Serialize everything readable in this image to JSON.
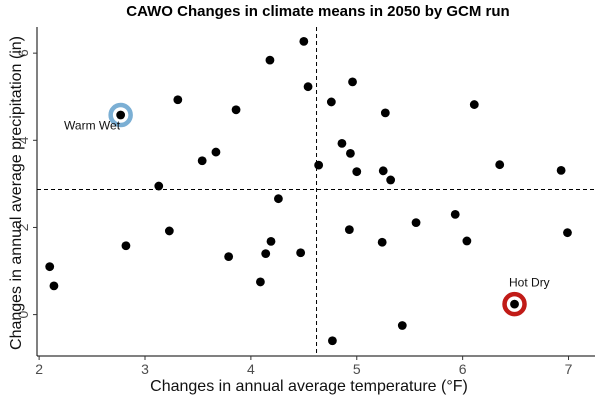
{
  "chart_data": {
    "type": "scatter",
    "title": "CAWO Changes in climate means in 2050 by GCM run",
    "xlabel": "Changes in annual average temperature (°F)",
    "ylabel": "Changes in annual average precipitation (in)",
    "xlim": [
      1.98,
      7.25
    ],
    "ylim": [
      -0.95,
      6.6
    ],
    "xticks": [
      2,
      3,
      4,
      5,
      6,
      7
    ],
    "yticks": [
      0,
      2,
      4,
      6
    ],
    "grid": false,
    "reference_lines": {
      "x": 4.62,
      "y": 2.87
    },
    "points": [
      {
        "x": 2.1,
        "y": 1.1
      },
      {
        "x": 2.14,
        "y": 0.66
      },
      {
        "x": 2.82,
        "y": 1.58
      },
      {
        "x": 3.13,
        "y": 2.95
      },
      {
        "x": 3.23,
        "y": 1.92
      },
      {
        "x": 3.31,
        "y": 4.93
      },
      {
        "x": 3.54,
        "y": 3.53
      },
      {
        "x": 3.67,
        "y": 3.73
      },
      {
        "x": 3.79,
        "y": 1.33
      },
      {
        "x": 3.86,
        "y": 4.7
      },
      {
        "x": 4.09,
        "y": 0.75
      },
      {
        "x": 4.14,
        "y": 1.4
      },
      {
        "x": 4.18,
        "y": 5.84
      },
      {
        "x": 4.19,
        "y": 1.68
      },
      {
        "x": 4.26,
        "y": 2.66
      },
      {
        "x": 4.47,
        "y": 1.42
      },
      {
        "x": 4.5,
        "y": 6.27
      },
      {
        "x": 4.54,
        "y": 5.23
      },
      {
        "x": 4.64,
        "y": 3.43
      },
      {
        "x": 4.76,
        "y": 4.88
      },
      {
        "x": 4.77,
        "y": -0.6
      },
      {
        "x": 4.86,
        "y": 3.93
      },
      {
        "x": 4.93,
        "y": 1.95
      },
      {
        "x": 4.94,
        "y": 3.7
      },
      {
        "x": 4.96,
        "y": 5.34
      },
      {
        "x": 5.0,
        "y": 3.28
      },
      {
        "x": 5.24,
        "y": 1.66
      },
      {
        "x": 5.25,
        "y": 3.3
      },
      {
        "x": 5.27,
        "y": 4.63
      },
      {
        "x": 5.32,
        "y": 3.09
      },
      {
        "x": 5.43,
        "y": -0.25
      },
      {
        "x": 5.56,
        "y": 2.11
      },
      {
        "x": 5.93,
        "y": 2.3
      },
      {
        "x": 6.04,
        "y": 1.69
      },
      {
        "x": 6.11,
        "y": 4.82
      },
      {
        "x": 6.35,
        "y": 3.44
      },
      {
        "x": 6.93,
        "y": 3.31
      },
      {
        "x": 6.99,
        "y": 1.88
      },
      {
        "x": 2.77,
        "y": 4.58
      },
      {
        "x": 6.49,
        "y": 0.24
      }
    ],
    "highlights": [
      {
        "label": "Warm Wet",
        "x": 2.77,
        "y": 4.58,
        "color": "#7bafd4",
        "label_dx": -0.27,
        "label_dy": -0.33
      },
      {
        "label": "Hot Dry",
        "x": 6.49,
        "y": 0.24,
        "color": "#c11b17",
        "label_dx": 0.14,
        "label_dy": 0.4
      }
    ]
  }
}
